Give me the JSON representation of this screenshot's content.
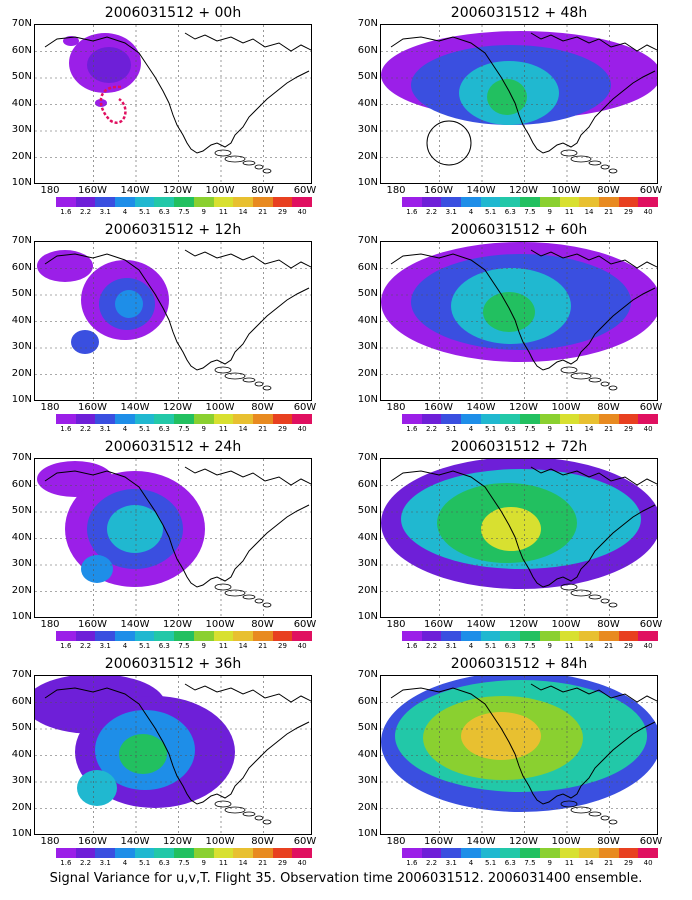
{
  "panels": [
    {
      "title": "2006031512 + 00h",
      "level": 0
    },
    {
      "title": "2006031512 + 48h",
      "level": 5
    },
    {
      "title": "2006031512 + 12h",
      "level": 2
    },
    {
      "title": "2006031512 + 60h",
      "level": 6
    },
    {
      "title": "2006031512 + 24h",
      "level": 3
    },
    {
      "title": "2006031512 + 72h",
      "level": 7
    },
    {
      "title": "2006031512 + 36h",
      "level": 4
    },
    {
      "title": "2006031512 + 84h",
      "level": 8
    }
  ],
  "lat_ticks": [
    "70N",
    "60N",
    "50N",
    "40N",
    "30N",
    "20N",
    "10N"
  ],
  "lon_ticks": [
    "180",
    "160W",
    "140W",
    "120W",
    "100W",
    "80W",
    "60W"
  ],
  "scale_values": [
    "1.6",
    "2.2",
    "3.1",
    "4",
    "5.1",
    "6.3",
    "7.5",
    "9",
    "11",
    "14",
    "21",
    "29",
    "40"
  ],
  "scale_colors": [
    "#9b1fe8",
    "#6e1fd8",
    "#3a4fe0",
    "#1e8ee8",
    "#20b8d0",
    "#22c8a8",
    "#22c060",
    "#8ad030",
    "#d8e030",
    "#e8c030",
    "#e88a20",
    "#e84020",
    "#e01060"
  ],
  "caption": "Signal Variance for u,v,T. Flight 35. Observation time 2006031512. 2006031400 ensemble."
}
